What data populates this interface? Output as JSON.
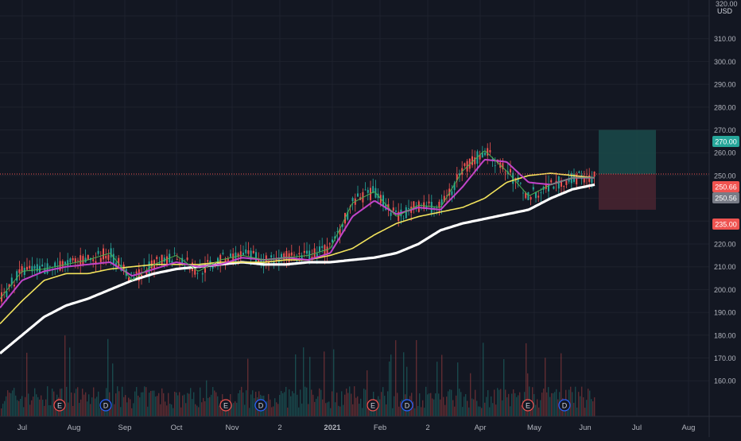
{
  "chart_data": {
    "type": "line",
    "currency": "USD",
    "y_axis": {
      "top_label": "320.00",
      "ticks": [
        320,
        310,
        300,
        290,
        280,
        270,
        260,
        250,
        240,
        230,
        220,
        210,
        200,
        190,
        180,
        170,
        160
      ],
      "range": [
        150,
        330
      ]
    },
    "x_axis": {
      "tick_labels": [
        "Jul",
        "Aug",
        "Sep",
        "Oct",
        "Nov",
        "2",
        "2021",
        "Feb",
        "2",
        "Apr",
        "May",
        "Jun",
        "Jul",
        "Aug"
      ],
      "bold_labels": [
        "2021"
      ]
    },
    "price_labels": [
      {
        "id": "target",
        "text": "270.00",
        "value": 270,
        "color": "#26a69a"
      },
      {
        "id": "entry",
        "text": "250.66",
        "value": 250.66,
        "color": "#ef5350"
      },
      {
        "id": "last",
        "text": "250.56",
        "value": 250.56,
        "color": "#787b86"
      },
      {
        "id": "stop",
        "text": "235.00",
        "value": 235,
        "color": "#ef5350"
      }
    ],
    "earnings_markers": [
      "E",
      "D",
      "E",
      "D",
      "E",
      "D",
      "E",
      "D"
    ],
    "position_tool": {
      "entry": 250.66,
      "target": 270,
      "stop": 235
    },
    "series": [
      {
        "color": "#ffffff",
        "values": [
          172,
          180,
          188,
          193,
          196,
          200,
          204,
          207,
          209,
          210,
          211,
          212,
          211,
          211,
          212,
          212,
          213,
          214,
          216,
          220,
          226,
          229,
          231,
          233,
          235,
          240,
          244,
          246
        ]
      },
      {
        "color": "#f2e35c",
        "values": [
          185,
          195,
          204,
          207,
          207,
          209,
          210,
          211,
          211,
          211,
          212,
          212,
          212,
          213,
          213,
          215,
          218,
          224,
          229,
          232,
          234,
          236,
          240,
          247,
          250,
          251,
          250,
          249
        ]
      },
      {
        "color": "#c244c9",
        "values": [
          192,
          204,
          208,
          210,
          211,
          212,
          206,
          209,
          212,
          210,
          211,
          214,
          213,
          214,
          213,
          216,
          232,
          239,
          233,
          236,
          235,
          245,
          257,
          256,
          247,
          246,
          249,
          249
        ]
      },
      {
        "color": "#4caf50",
        "values": [
          196,
          208,
          209,
          211,
          213,
          216,
          204,
          211,
          215,
          208,
          213,
          215,
          213,
          214,
          215,
          218,
          238,
          243,
          232,
          237,
          236,
          252,
          261,
          252,
          241,
          246,
          249,
          249
        ]
      }
    ]
  }
}
